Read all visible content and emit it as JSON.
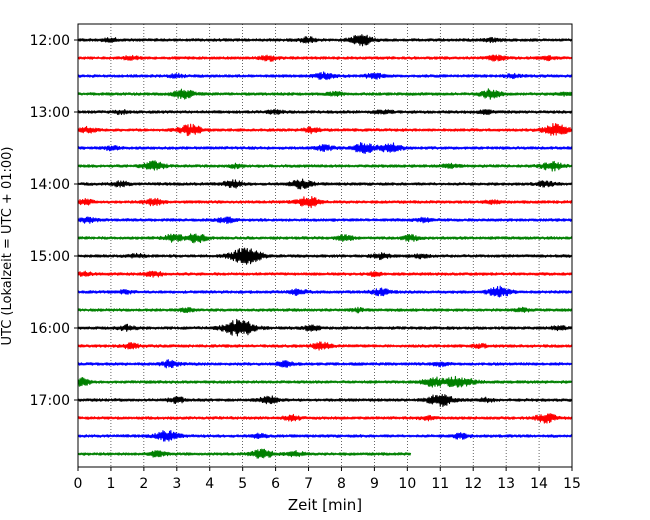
{
  "chart_data": {
    "type": "line",
    "title": "",
    "xlabel": "Zeit  [min]",
    "ylabel": "UTC (Lokalzeit = UTC + 01:00)",
    "xlim": [
      0,
      15
    ],
    "x_ticks": [
      "0",
      "1",
      "2",
      "3",
      "4",
      "5",
      "6",
      "7",
      "8",
      "9",
      "10",
      "11",
      "12",
      "13",
      "14",
      "15"
    ],
    "y_ticks": [
      "12:00",
      "13:00",
      "14:00",
      "15:00",
      "16:00",
      "17:00"
    ],
    "grid": "vertical dotted at each minute",
    "trace_interval_minutes": 15,
    "colors": [
      "#000000",
      "#ff0000",
      "#0000ff",
      "#008000"
    ],
    "traces": [
      {
        "start": "12:00",
        "color": "#000000",
        "end_min": 15,
        "events": [
          [
            1.0,
            0.2
          ],
          [
            7.0,
            0.3
          ],
          [
            8.6,
            0.6
          ],
          [
            12.6,
            0.2
          ]
        ]
      },
      {
        "start": "12:15",
        "color": "#ff0000",
        "end_min": 15,
        "events": [
          [
            1.6,
            0.2
          ],
          [
            5.8,
            0.3
          ],
          [
            12.7,
            0.3
          ],
          [
            14.3,
            0.2
          ]
        ]
      },
      {
        "start": "12:30",
        "color": "#0000ff",
        "end_min": 15,
        "events": [
          [
            3.0,
            0.2
          ],
          [
            7.5,
            0.4
          ],
          [
            9.0,
            0.3
          ],
          [
            13.2,
            0.2
          ]
        ]
      },
      {
        "start": "12:45",
        "color": "#008000",
        "end_min": 15,
        "events": [
          [
            3.2,
            0.5
          ],
          [
            7.8,
            0.2
          ],
          [
            12.5,
            0.5
          ],
          [
            14.9,
            0.2
          ]
        ]
      },
      {
        "start": "13:00",
        "color": "#000000",
        "end_min": 15,
        "events": [
          [
            1.3,
            0.2
          ],
          [
            6.0,
            0.2
          ],
          [
            9.3,
            0.2
          ],
          [
            12.4,
            0.2
          ]
        ]
      },
      {
        "start": "13:15",
        "color": "#ff0000",
        "end_min": 15,
        "events": [
          [
            0.3,
            0.3
          ],
          [
            3.4,
            0.6
          ],
          [
            7.1,
            0.3
          ],
          [
            14.5,
            0.7
          ]
        ]
      },
      {
        "start": "13:30",
        "color": "#0000ff",
        "end_min": 15,
        "events": [
          [
            1.0,
            0.2
          ],
          [
            7.5,
            0.3
          ],
          [
            8.7,
            0.6
          ],
          [
            9.5,
            0.5
          ]
        ]
      },
      {
        "start": "13:45",
        "color": "#008000",
        "end_min": 15,
        "events": [
          [
            2.3,
            0.5
          ],
          [
            4.8,
            0.2
          ],
          [
            11.3,
            0.2
          ],
          [
            14.4,
            0.5
          ]
        ]
      },
      {
        "start": "14:00",
        "color": "#000000",
        "end_min": 15,
        "events": [
          [
            1.3,
            0.3
          ],
          [
            4.7,
            0.4
          ],
          [
            6.8,
            0.5
          ],
          [
            14.2,
            0.3
          ]
        ]
      },
      {
        "start": "14:15",
        "color": "#ff0000",
        "end_min": 15,
        "events": [
          [
            0.2,
            0.3
          ],
          [
            2.3,
            0.4
          ],
          [
            7.0,
            0.6
          ],
          [
            12.6,
            0.2
          ]
        ]
      },
      {
        "start": "14:30",
        "color": "#0000ff",
        "end_min": 15,
        "events": [
          [
            0.3,
            0.3
          ],
          [
            4.5,
            0.3
          ],
          [
            10.5,
            0.2
          ]
        ]
      },
      {
        "start": "14:45",
        "color": "#008000",
        "end_min": 15,
        "events": [
          [
            2.9,
            0.4
          ],
          [
            3.6,
            0.5
          ],
          [
            8.1,
            0.3
          ],
          [
            10.1,
            0.3
          ]
        ]
      },
      {
        "start": "15:00",
        "color": "#000000",
        "end_min": 15,
        "events": [
          [
            1.8,
            0.2
          ],
          [
            5.1,
            1.0
          ],
          [
            9.2,
            0.3
          ],
          [
            10.4,
            0.2
          ]
        ]
      },
      {
        "start": "15:15",
        "color": "#ff0000",
        "end_min": 15,
        "events": [
          [
            0.2,
            0.2
          ],
          [
            2.3,
            0.3
          ],
          [
            9.0,
            0.2
          ]
        ]
      },
      {
        "start": "15:30",
        "color": "#0000ff",
        "end_min": 15,
        "events": [
          [
            1.4,
            0.2
          ],
          [
            6.7,
            0.3
          ],
          [
            9.2,
            0.4
          ],
          [
            12.8,
            0.6
          ]
        ]
      },
      {
        "start": "15:45",
        "color": "#008000",
        "end_min": 15,
        "events": [
          [
            3.3,
            0.2
          ],
          [
            8.5,
            0.2
          ],
          [
            13.5,
            0.2
          ]
        ]
      },
      {
        "start": "16:00",
        "color": "#000000",
        "end_min": 15,
        "events": [
          [
            1.5,
            0.3
          ],
          [
            4.9,
            1.0
          ],
          [
            7.1,
            0.3
          ],
          [
            14.6,
            0.2
          ]
        ]
      },
      {
        "start": "16:15",
        "color": "#ff0000",
        "end_min": 15,
        "events": [
          [
            1.6,
            0.3
          ],
          [
            7.4,
            0.4
          ],
          [
            12.2,
            0.2
          ]
        ]
      },
      {
        "start": "16:30",
        "color": "#0000ff",
        "end_min": 15,
        "events": [
          [
            2.8,
            0.4
          ],
          [
            6.3,
            0.3
          ],
          [
            11.0,
            0.2
          ]
        ]
      },
      {
        "start": "16:45",
        "color": "#008000",
        "end_min": 15,
        "events": [
          [
            0.1,
            0.4
          ],
          [
            10.8,
            0.5
          ],
          [
            11.5,
            0.6
          ],
          [
            12.0,
            0.2
          ]
        ]
      },
      {
        "start": "17:00",
        "color": "#000000",
        "end_min": 15,
        "events": [
          [
            3.0,
            0.3
          ],
          [
            5.8,
            0.4
          ],
          [
            11.0,
            0.7
          ],
          [
            12.4,
            0.2
          ]
        ]
      },
      {
        "start": "17:15",
        "color": "#ff0000",
        "end_min": 15,
        "events": [
          [
            6.5,
            0.3
          ],
          [
            10.6,
            0.2
          ],
          [
            14.2,
            0.5
          ]
        ]
      },
      {
        "start": "17:30",
        "color": "#0000ff",
        "end_min": 15,
        "events": [
          [
            2.7,
            0.6
          ],
          [
            5.5,
            0.2
          ],
          [
            11.6,
            0.3
          ]
        ]
      },
      {
        "start": "17:45",
        "color": "#008000",
        "end_min": 10.1,
        "events": [
          [
            2.4,
            0.3
          ],
          [
            5.6,
            0.5
          ],
          [
            6.6,
            0.3
          ]
        ]
      }
    ]
  }
}
